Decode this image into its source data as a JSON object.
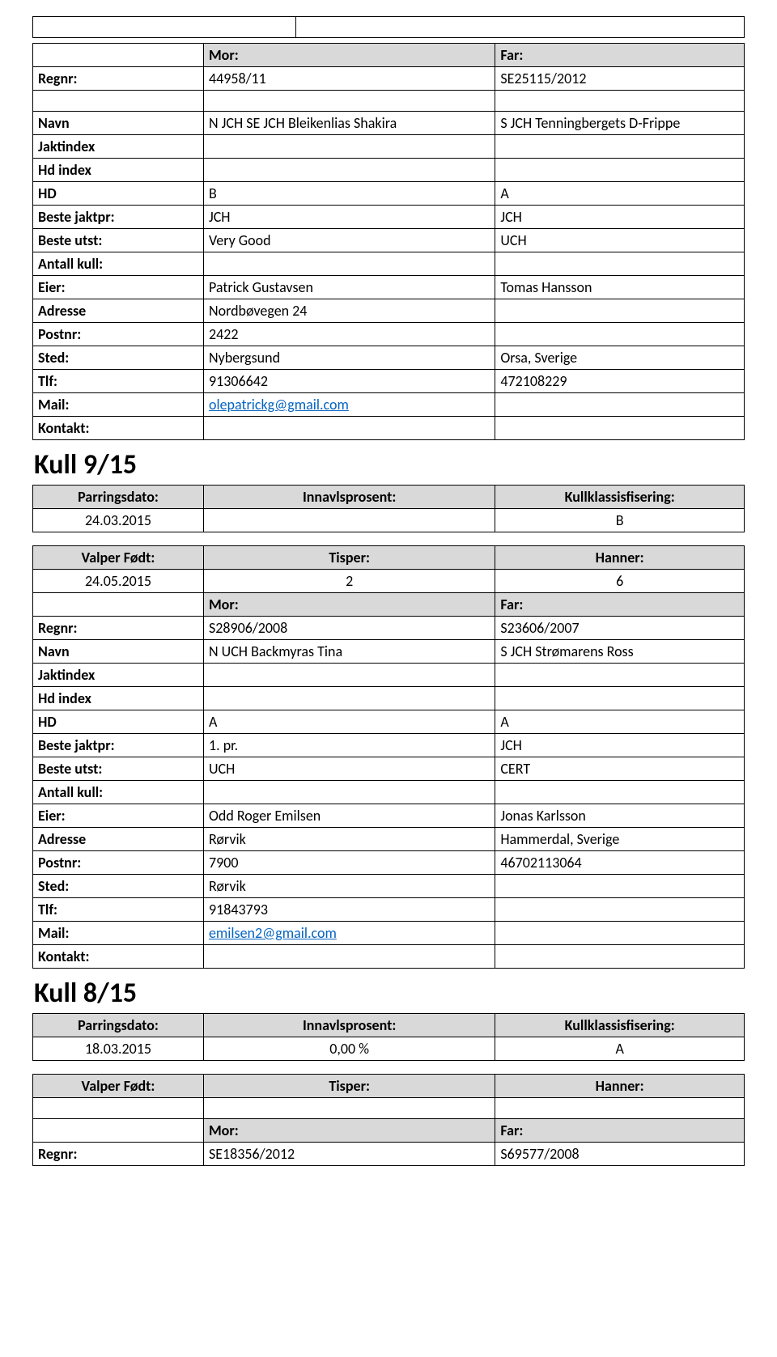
{
  "top_blank": {
    "c1": "",
    "c2": "",
    "c3": ""
  },
  "block1": {
    "mor_far": {
      "label_mor": "Mor:",
      "label_far": "Far:"
    },
    "rows": [
      {
        "label": "Regnr:",
        "mor": "44958/11",
        "far": "SE25115/2012"
      },
      {
        "label": "",
        "mor": "",
        "far": ""
      },
      {
        "label": "Navn",
        "mor": "N JCH SE JCH Bleikenlias Shakira",
        "far": "S JCH Tenningbergets D-Frippe"
      },
      {
        "label": "Jaktindex",
        "mor": "",
        "far": ""
      },
      {
        "label": "Hd index",
        "mor": "",
        "far": ""
      },
      {
        "label": "HD",
        "mor": "B",
        "far": "A"
      },
      {
        "label": "Beste jaktpr:",
        "mor": "JCH",
        "far": "JCH"
      },
      {
        "label": "Beste utst:",
        "mor": "Very  Good",
        "far": "UCH"
      },
      {
        "label": "Antall kull:",
        "mor": "",
        "far": ""
      },
      {
        "label": "Eier:",
        "mor": "Patrick Gustavsen",
        "far": "Tomas Hansson"
      },
      {
        "label": "Adresse",
        "mor": "Nordbøvegen 24",
        "far": ""
      },
      {
        "label": "Postnr:",
        "mor": "2422",
        "far": ""
      },
      {
        "label": "Sted:",
        "mor": "Nybergsund",
        "far": "Orsa, Sverige"
      },
      {
        "label": "Tlf:",
        "mor": "91306642",
        "far": "472108229"
      },
      {
        "label": "Mail:",
        "mor": "olepatrickg@gmail.com",
        "far": "",
        "link": true
      },
      {
        "label": "Kontakt:",
        "mor": "",
        "far": ""
      }
    ]
  },
  "kull9": {
    "title": "Kull 9/15",
    "head": {
      "c1": "Parringsdato:",
      "c2": "Innavlsprosent:",
      "c3": "Kullklassisfisering:"
    },
    "vals": {
      "c1": "24.03.2015",
      "c2": "",
      "c3": "B"
    }
  },
  "valper9": {
    "head": {
      "c1": "Valper Født:",
      "c2": "Tisper:",
      "c3": "Hanner:"
    },
    "vals": {
      "c1": "24.05.2015",
      "c2": "2",
      "c3": "6"
    }
  },
  "block2": {
    "mor_far": {
      "label_mor": "Mor:",
      "label_far": "Far:"
    },
    "rows": [
      {
        "label": "Regnr:",
        "mor": "S28906/2008",
        "far": "S23606/2007"
      },
      {
        "label": "Navn",
        "mor": "N UCH Backmyras Tina",
        "far": "S JCH Strømarens Ross"
      },
      {
        "label": "Jaktindex",
        "mor": "",
        "far": ""
      },
      {
        "label": "Hd index",
        "mor": "",
        "far": ""
      },
      {
        "label": "HD",
        "mor": "A",
        "far": "A"
      },
      {
        "label": "Beste jaktpr:",
        "mor": "1. pr.",
        "far": "JCH"
      },
      {
        "label": "Beste utst:",
        "mor": "UCH",
        "far": "CERT"
      },
      {
        "label": "Antall kull:",
        "mor": "",
        "far": ""
      },
      {
        "label": "Eier:",
        "mor": "Odd Roger Emilsen",
        "far": "Jonas Karlsson"
      },
      {
        "label": "Adresse",
        "mor": "Rørvik",
        "far": "Hammerdal, Sverige"
      },
      {
        "label": "Postnr:",
        "mor": "7900",
        "far": "46702113064"
      },
      {
        "label": "Sted:",
        "mor": "Rørvik",
        "far": ""
      },
      {
        "label": "Tlf:",
        "mor": "91843793",
        "far": ""
      },
      {
        "label": "Mail:",
        "mor": "emilsen2@gmail.com",
        "far": "",
        "link": true
      },
      {
        "label": "Kontakt:",
        "mor": "",
        "far": ""
      }
    ]
  },
  "kull8": {
    "title": "Kull 8/15",
    "head": {
      "c1": "Parringsdato:",
      "c2": "Innavlsprosent:",
      "c3": "Kullklassisfisering:"
    },
    "vals": {
      "c1": "18.03.2015",
      "c2": "0,00 %",
      "c3": "A"
    }
  },
  "valper8": {
    "head": {
      "c1": "Valper Født:",
      "c2": "Tisper:",
      "c3": "Hanner:"
    },
    "vals": {
      "c1": "",
      "c2": "",
      "c3": ""
    }
  },
  "block3": {
    "mor_far": {
      "label_mor": "Mor:",
      "label_far": "Far:"
    },
    "rows": [
      {
        "label": "Regnr:",
        "mor": "SE18356/2012",
        "far": "S69577/2008"
      }
    ]
  }
}
